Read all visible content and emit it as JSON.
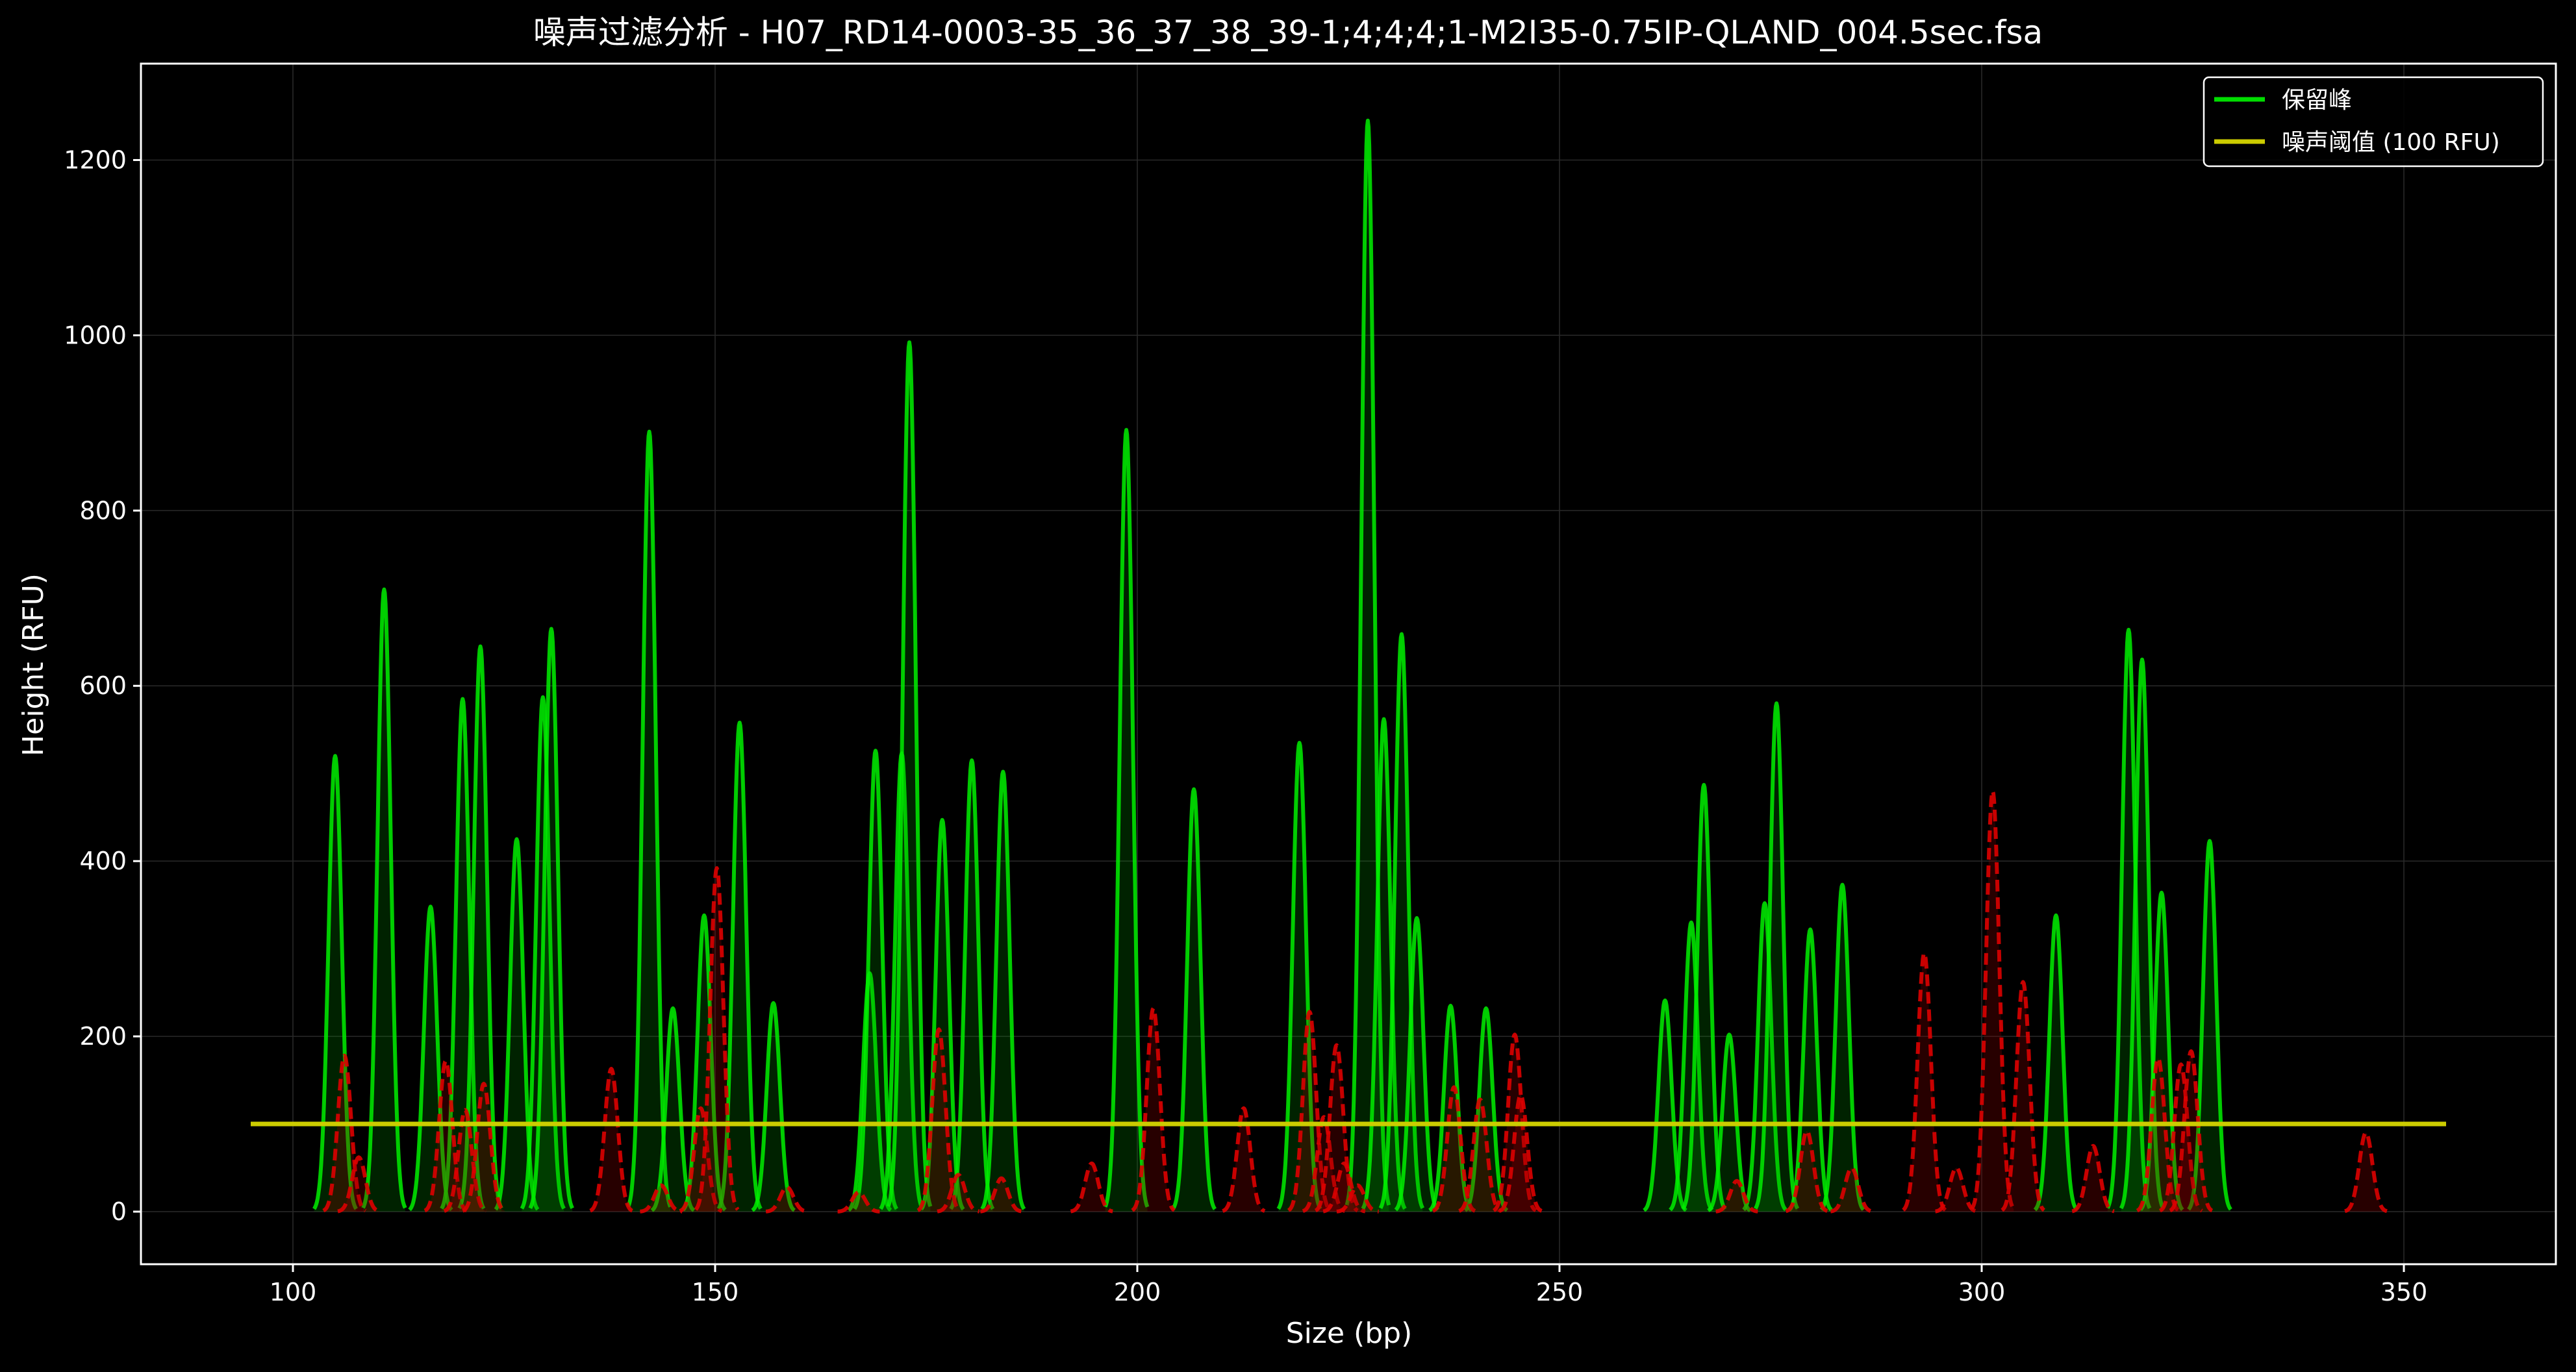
{
  "chart_data": {
    "type": "line",
    "title": "噪声过滤分析 - H07_RD14-0003-35_36_37_38_39-1;4;4;4;1-M2I35-0.75IP-QLAND_004.5sec.fsa",
    "xlabel": "Size (bp)",
    "ylabel": "Height (RFU)",
    "xlim": [
      82,
      368
    ],
    "ylim": [
      -60,
      1310
    ],
    "xticks": [
      100,
      150,
      200,
      250,
      300,
      350
    ],
    "yticks": [
      0,
      200,
      400,
      600,
      800,
      1000,
      1200
    ],
    "grid": true,
    "legend_position": "top-right",
    "legend": [
      {
        "label": "保留峰",
        "color": "#00dd00"
      },
      {
        "label": "噪声阈值 (100 RFU)",
        "color": "#cccc00"
      }
    ],
    "colors": {
      "retained": "#00ee00",
      "noise": "#dd0000",
      "threshold": "#cccc00",
      "background": "#000000"
    },
    "threshold": {
      "y": 100,
      "x_range": [
        95,
        355
      ]
    },
    "series": [
      {
        "kind": "retained",
        "peaks": [
          [
            105.0,
            520
          ],
          [
            110.8,
            710
          ],
          [
            116.3,
            348
          ],
          [
            120.1,
            585
          ],
          [
            122.2,
            645
          ],
          [
            126.5,
            425
          ],
          [
            129.6,
            587
          ],
          [
            130.6,
            665
          ],
          [
            142.2,
            890
          ],
          [
            145.0,
            232
          ],
          [
            148.7,
            338
          ],
          [
            152.9,
            558
          ],
          [
            156.9,
            238
          ],
          [
            168.3,
            272
          ],
          [
            169.0,
            526
          ],
          [
            172.1,
            523
          ],
          [
            173.0,
            992
          ],
          [
            176.9,
            447
          ],
          [
            180.4,
            515
          ],
          [
            184.1,
            502
          ],
          [
            198.7,
            892
          ],
          [
            206.7,
            482
          ],
          [
            219.2,
            535
          ],
          [
            227.3,
            1245
          ],
          [
            229.2,
            562
          ],
          [
            231.3,
            659
          ],
          [
            233.1,
            335
          ],
          [
            237.1,
            235
          ],
          [
            241.3,
            232
          ],
          [
            262.5,
            241
          ],
          [
            265.6,
            330
          ],
          [
            267.1,
            487
          ],
          [
            270.1,
            202
          ],
          [
            274.3,
            352
          ],
          [
            275.7,
            580
          ],
          [
            279.7,
            322
          ],
          [
            283.5,
            373
          ],
          [
            308.8,
            338
          ],
          [
            317.4,
            664
          ],
          [
            319.0,
            630
          ],
          [
            321.3,
            364
          ],
          [
            327.0,
            423
          ]
        ]
      },
      {
        "kind": "noise",
        "peaks": [
          [
            106.1,
            178
          ],
          [
            107.8,
            62
          ],
          [
            118.1,
            172
          ],
          [
            120.4,
            116
          ],
          [
            122.6,
            146
          ],
          [
            137.7,
            163
          ],
          [
            143.6,
            30
          ],
          [
            148.3,
            118
          ],
          [
            150.2,
            392
          ],
          [
            158.5,
            28
          ],
          [
            167.0,
            22
          ],
          [
            176.5,
            208
          ],
          [
            178.8,
            42
          ],
          [
            183.9,
            38
          ],
          [
            194.6,
            55
          ],
          [
            201.9,
            232
          ],
          [
            212.6,
            118
          ],
          [
            220.4,
            228
          ],
          [
            222.1,
            108
          ],
          [
            223.6,
            190
          ],
          [
            224.5,
            55
          ],
          [
            226.1,
            30
          ],
          [
            237.5,
            142
          ],
          [
            240.6,
            128
          ],
          [
            244.7,
            202
          ],
          [
            245.4,
            133
          ],
          [
            271.0,
            35
          ],
          [
            279.3,
            92
          ],
          [
            284.6,
            50
          ],
          [
            293.2,
            295
          ],
          [
            297.0,
            50
          ],
          [
            301.3,
            480
          ],
          [
            304.9,
            262
          ],
          [
            313.2,
            75
          ],
          [
            320.9,
            175
          ],
          [
            323.6,
            168
          ],
          [
            324.8,
            183
          ],
          [
            345.5,
            90
          ]
        ]
      }
    ]
  }
}
